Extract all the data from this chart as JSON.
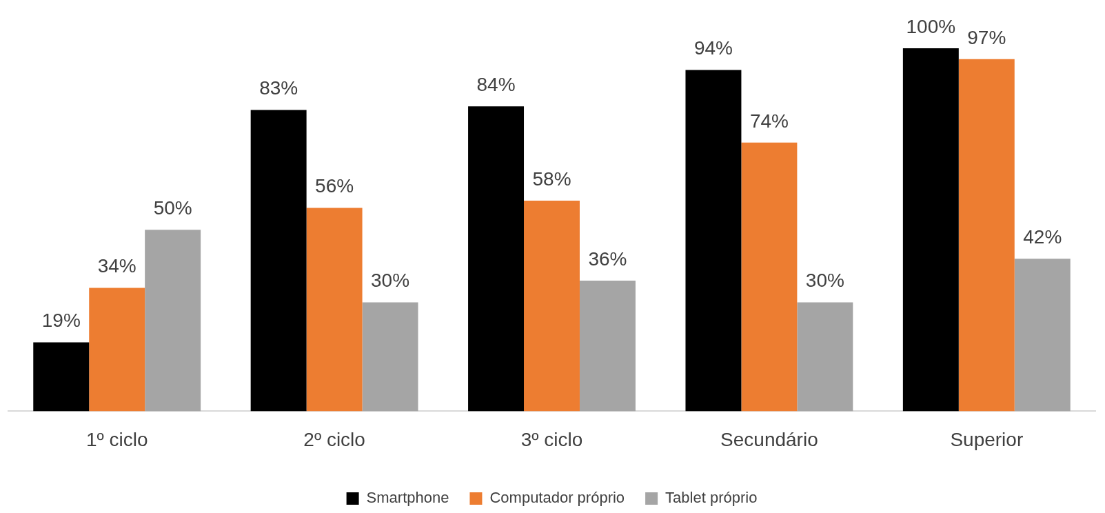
{
  "chart_data": {
    "type": "bar",
    "categories": [
      "1º ciclo",
      "2º ciclo",
      "3º ciclo",
      "Secundário",
      "Superior"
    ],
    "series": [
      {
        "name": "Smartphone",
        "color": "#000000",
        "values": [
          19,
          83,
          84,
          94,
          100
        ],
        "value_labels": [
          "19%",
          "83%",
          "84%",
          "94%",
          "100%"
        ]
      },
      {
        "name": "Computador próprio",
        "color": "#ed7d31",
        "values": [
          34,
          56,
          58,
          74,
          97
        ],
        "value_labels": [
          "34%",
          "56%",
          "58%",
          "74%",
          "97%"
        ]
      },
      {
        "name": "Tablet próprio",
        "color": "#a5a5a5",
        "values": [
          50,
          30,
          36,
          30,
          42
        ],
        "value_labels": [
          "50%",
          "30%",
          "36%",
          "30%",
          "42%"
        ]
      }
    ],
    "legend": "bottom",
    "grid": false
  }
}
